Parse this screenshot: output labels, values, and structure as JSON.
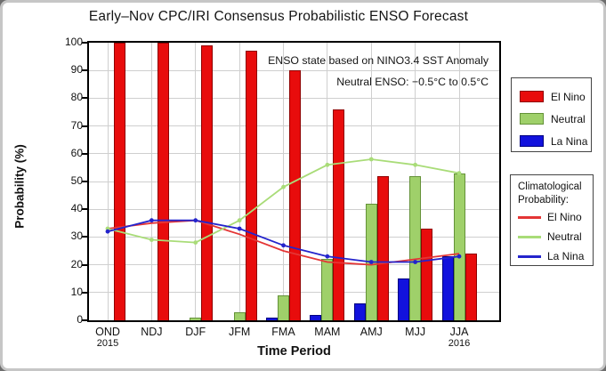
{
  "chart_data": {
    "type": "bar+line",
    "title": "Early–Nov CPC/IRI Consensus Probabilistic ENSO Forecast",
    "xlabel": "Time Period",
    "ylabel": "Probability (%)",
    "ylim": [
      0,
      100
    ],
    "yticks": [
      0,
      10,
      20,
      30,
      40,
      50,
      60,
      70,
      80,
      90,
      100
    ],
    "grid": true,
    "legend_position": "right",
    "categories": [
      "OND",
      "NDJ",
      "DJF",
      "JFM",
      "FMA",
      "MAM",
      "AMJ",
      "MJJ",
      "JJA"
    ],
    "x_year_labels": {
      "first": "2015",
      "last": "2016"
    },
    "annotations": [
      "ENSO state based on NINO3.4 SST Anomaly",
      "Neutral ENSO: −0.5°C to 0.5°C"
    ],
    "bar_series": [
      {
        "name": "El Nino",
        "color": "#e80c0c",
        "border_color": "#8f0000",
        "values": [
          100,
          100,
          99,
          97,
          90,
          76,
          52,
          33,
          24
        ]
      },
      {
        "name": "Neutral",
        "color": "#9fd06a",
        "border_color": "#649238",
        "values": [
          0,
          0,
          1,
          3,
          9,
          22,
          42,
          52,
          53
        ]
      },
      {
        "name": "La Nina",
        "color": "#1212dd",
        "border_color": "#000080",
        "values": [
          0,
          0,
          0,
          0,
          1,
          2,
          6,
          15,
          23
        ]
      }
    ],
    "bar_group_order_left_to_right": [
      "La Nina",
      "Neutral",
      "El Nino"
    ],
    "line_series": [
      {
        "name": "El Nino",
        "color": "#e43535",
        "markers": false,
        "values": [
          33,
          35,
          36,
          31,
          25,
          21,
          20,
          22,
          24
        ]
      },
      {
        "name": "Neutral",
        "color": "#a9dc78",
        "markers": true,
        "values": [
          33,
          29,
          28,
          36,
          48,
          56,
          58,
          56,
          53
        ]
      },
      {
        "name": "La Nina",
        "color": "#2424cc",
        "markers": true,
        "values": [
          32,
          36,
          36,
          33,
          27,
          23,
          21,
          21,
          23
        ]
      }
    ],
    "legend2_title_lines": [
      "Climatological",
      "Probability:"
    ]
  }
}
